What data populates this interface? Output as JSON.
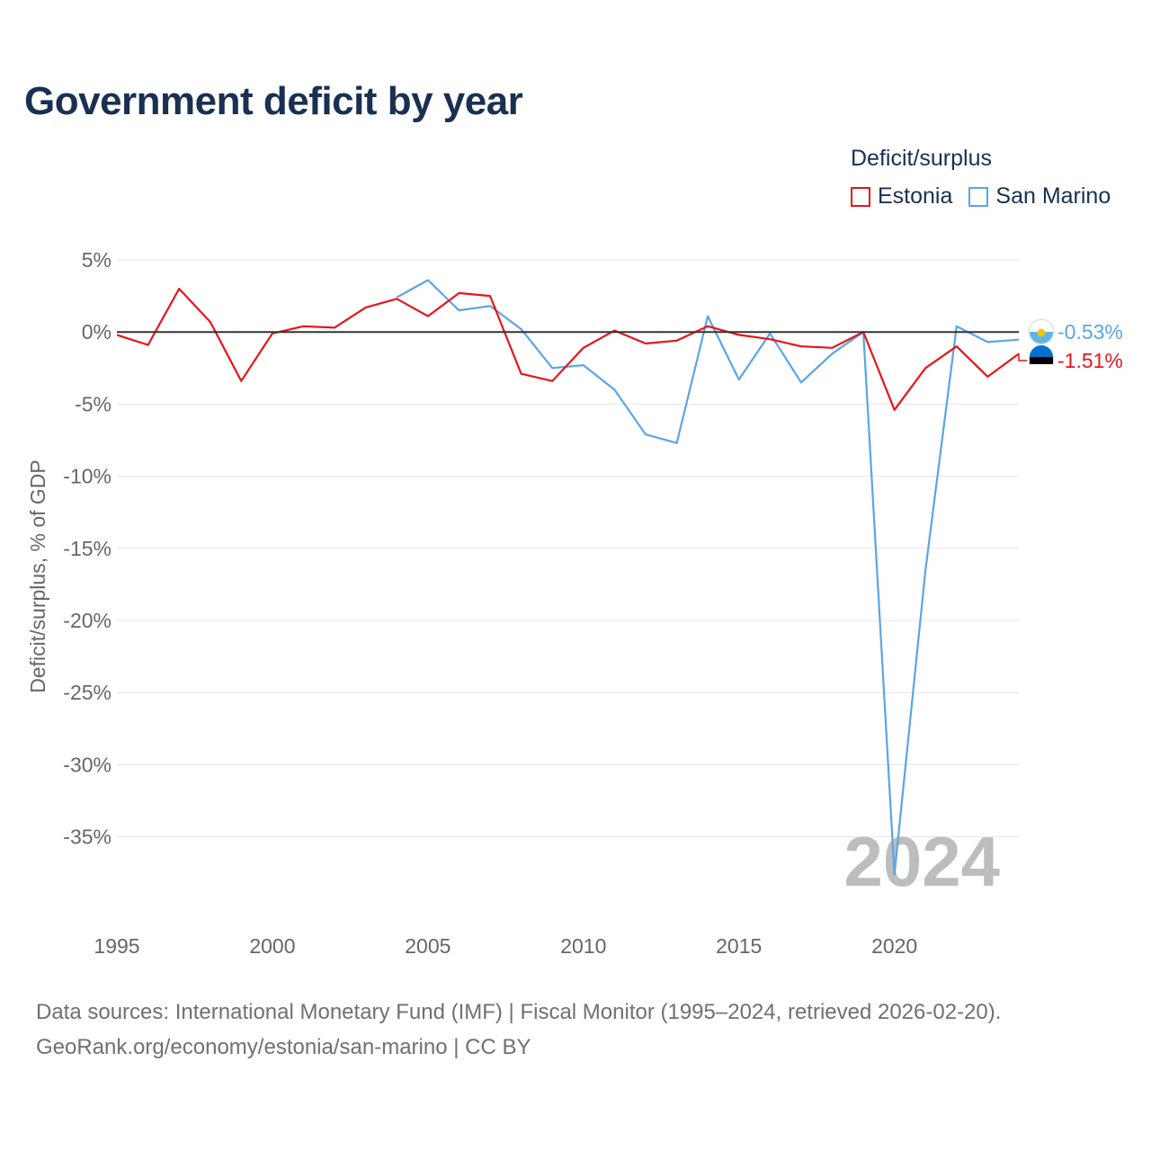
{
  "title": "Government deficit by year",
  "legend": {
    "title": "Deficit/surplus",
    "items": [
      {
        "label": "Estonia",
        "color": "#e8141b"
      },
      {
        "label": "San Marino",
        "color": "#5aa5e6"
      }
    ]
  },
  "watermark_year": "2024",
  "footer": {
    "line1": "Data sources: International Monetary Fund (IMF) | Fiscal Monitor (1995–2024, retrieved 2026-02-20).",
    "line2": "GeoRank.org/economy/estonia/san-marino | CC BY"
  },
  "end_labels": {
    "san_marino": "-0.53%",
    "estonia": "-1.51%"
  },
  "icons": {
    "san_marino_flag": "san-marino-flag-icon",
    "estonia_flag": "estonia-flag-icon"
  },
  "chart_data": {
    "type": "line",
    "title": "Government deficit by year",
    "xlabel": "",
    "ylabel": "Deficit/surplus, % of GDP",
    "xlim": [
      1995,
      2024
    ],
    "ylim": [
      -40,
      5
    ],
    "x_ticks": [
      1995,
      2000,
      2005,
      2010,
      2015,
      2020
    ],
    "x_tick_labels": [
      "1995",
      "2000",
      "2005",
      "2010",
      "2015",
      "2020"
    ],
    "y_ticks": [
      5,
      0,
      -5,
      -10,
      -15,
      -20,
      -25,
      -30,
      -35
    ],
    "y_tick_labels": [
      "5%",
      "0%",
      "-5%",
      "-10%",
      "-15%",
      "-20%",
      "-25%",
      "-30%",
      "-35%"
    ],
    "zero_line": true,
    "grid": true,
    "legend_position": "top-right",
    "series": [
      {
        "name": "Estonia",
        "color": "#e8141b",
        "x": [
          1995,
          1996,
          1997,
          1998,
          1999,
          2000,
          2001,
          2002,
          2003,
          2004,
          2005,
          2006,
          2007,
          2008,
          2009,
          2010,
          2011,
          2012,
          2013,
          2014,
          2015,
          2016,
          2017,
          2018,
          2019,
          2020,
          2021,
          2022,
          2023,
          2024
        ],
        "values": [
          -0.2,
          -0.9,
          3.0,
          0.7,
          -3.4,
          -0.1,
          0.4,
          0.3,
          1.7,
          2.3,
          1.1,
          2.7,
          2.5,
          -2.9,
          -3.4,
          -1.1,
          0.1,
          -0.8,
          -0.6,
          0.4,
          -0.2,
          -0.5,
          -1.0,
          -1.1,
          0.0,
          -5.4,
          -2.5,
          -1.0,
          -3.1,
          -1.51
        ]
      },
      {
        "name": "San Marino",
        "color": "#5aa5e6",
        "x": [
          2004,
          2005,
          2006,
          2007,
          2008,
          2009,
          2010,
          2011,
          2012,
          2013,
          2014,
          2015,
          2016,
          2017,
          2018,
          2019,
          2020,
          2021,
          2022,
          2023,
          2024
        ],
        "values": [
          2.4,
          3.6,
          1.5,
          1.8,
          0.2,
          -2.5,
          -2.3,
          -4.0,
          -7.1,
          -7.7,
          1.1,
          -3.3,
          -0.1,
          -3.5,
          -1.5,
          0.0,
          -37.6,
          -16.5,
          0.4,
          -0.7,
          -0.53
        ]
      }
    ]
  }
}
